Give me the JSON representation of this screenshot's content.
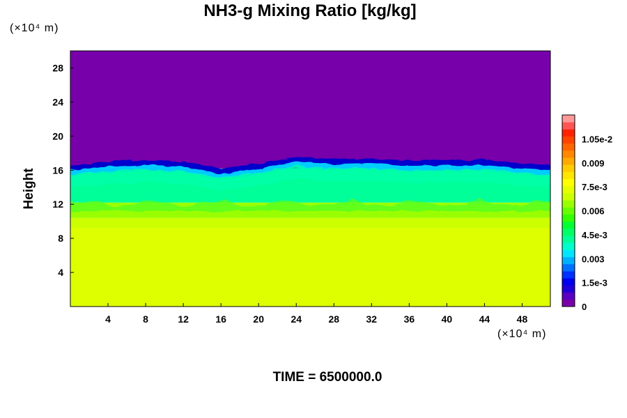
{
  "chart_data": {
    "type": "heatmap",
    "title": "NH3-g Mixing Ratio [kg/kg]",
    "xlabel": "",
    "ylabel": "Height",
    "x_units": "(×10⁴ m)",
    "y_units": "(×10⁴ m)",
    "x_ticks": [
      "4",
      "8",
      "12",
      "16",
      "20",
      "24",
      "28",
      "32",
      "36",
      "40",
      "44",
      "48"
    ],
    "y_ticks": [
      "4",
      "8",
      "12",
      "16",
      "20",
      "24",
      "28"
    ],
    "xlim": [
      0,
      51
    ],
    "ylim": [
      0,
      30
    ],
    "layers": [
      {
        "y_range": [
          0,
          9.2
        ],
        "value": 0.0081,
        "color": "#ddff00"
      },
      {
        "y_range": [
          9.2,
          10.4
        ],
        "value": 0.0075,
        "color": "#ccff00"
      },
      {
        "y_range": [
          10.4,
          12.2
        ],
        "value": 0.0066,
        "color": "#99ff00"
      },
      {
        "y_range": [
          12.2,
          16.2
        ],
        "value": 0.0042,
        "color": "#00ff99"
      },
      {
        "y_range": [
          16.2,
          30
        ],
        "value": 0.0,
        "color": "#7700aa"
      }
    ],
    "tropopause_height": [
      {
        "x": 0,
        "y": 16.0
      },
      {
        "x": 4,
        "y": 16.4
      },
      {
        "x": 8,
        "y": 16.6
      },
      {
        "x": 12,
        "y": 16.4
      },
      {
        "x": 16,
        "y": 15.6
      },
      {
        "x": 20,
        "y": 16.2
      },
      {
        "x": 24,
        "y": 17.0
      },
      {
        "x": 28,
        "y": 16.7
      },
      {
        "x": 32,
        "y": 16.8
      },
      {
        "x": 36,
        "y": 16.5
      },
      {
        "x": 40,
        "y": 16.6
      },
      {
        "x": 44,
        "y": 16.6
      },
      {
        "x": 48,
        "y": 16.2
      },
      {
        "x": 51,
        "y": 16.0
      }
    ],
    "colorbar": {
      "min": 0,
      "max": 0.012,
      "tick_labels": [
        {
          "label": "1.05e-2",
          "value": 0.0105
        },
        {
          "label": "0.009",
          "value": 0.009
        },
        {
          "label": "7.5e-3",
          "value": 0.0075
        },
        {
          "label": "0.006",
          "value": 0.006
        },
        {
          "label": "4.5e-3",
          "value": 0.0045
        },
        {
          "label": "0.003",
          "value": 0.003
        },
        {
          "label": "1.5e-3",
          "value": 0.0015
        },
        {
          "label": "0",
          "value": 0
        }
      ],
      "colors": [
        "#7a00a8",
        "#5a00c0",
        "#2000d8",
        "#0000f0",
        "#0030ff",
        "#0070ff",
        "#00b0ff",
        "#00e6ff",
        "#00ffcc",
        "#00ff99",
        "#00ff66",
        "#00ff33",
        "#33ff00",
        "#66ff00",
        "#99ff00",
        "#ccff00",
        "#e6ff00",
        "#ffff00",
        "#ffe600",
        "#ffcc00",
        "#ffaa00",
        "#ff8800",
        "#ff6600",
        "#ff4400",
        "#ff2200",
        "#ff5555",
        "#ff9999"
      ]
    }
  },
  "footer": {
    "time_label": "TIME = 6500000.0"
  }
}
